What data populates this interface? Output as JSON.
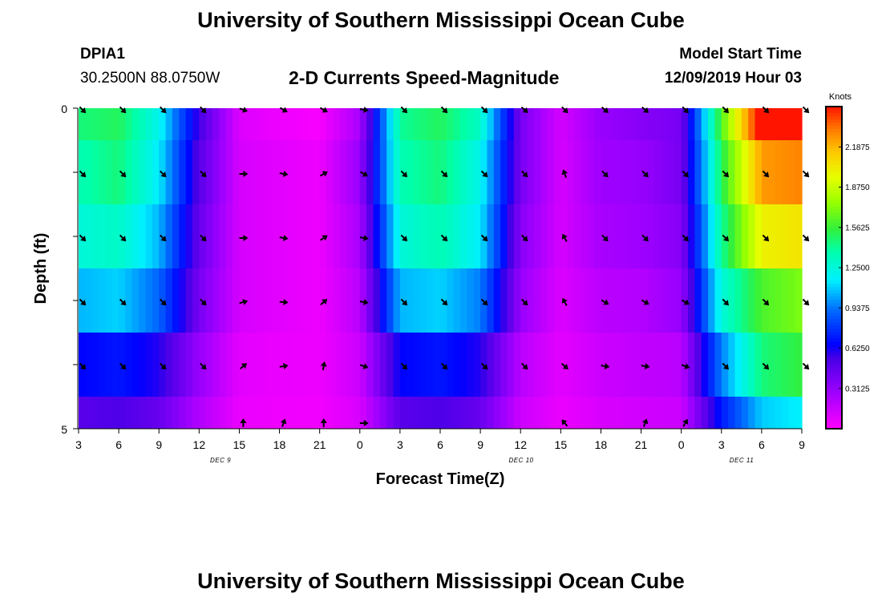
{
  "header": {
    "title": "University of Southern Mississippi Ocean Cube",
    "footer_title": "University of Southern Mississippi Ocean Cube",
    "station": "DPIA1",
    "location": "30.2500N 88.0750W",
    "chart_title": "2-D Currents Speed-Magnitude",
    "model_start_label": "Model Start Time",
    "model_start_value": "12/09/2019 Hour 03"
  },
  "chart_data": {
    "type": "heatmap",
    "title": "2-D Currents Speed-Magnitude",
    "xlabel": "Forecast Time(Z)",
    "ylabel": "Depth (ft)",
    "x_tick_labels": [
      "3",
      "6",
      "9",
      "12",
      "15",
      "18",
      "21",
      "0",
      "3",
      "6",
      "9",
      "12",
      "15",
      "18",
      "21",
      "0",
      "3",
      "6",
      "9"
    ],
    "y_tick_labels": [
      "0",
      "5"
    ],
    "ylim": [
      0,
      5
    ],
    "date_labels": [
      "DEC 9",
      "DEC 10",
      "DEC 11"
    ],
    "depths_ft": [
      0.5,
      1.5,
      2.5,
      3.5,
      4.5
    ],
    "hours": [
      3,
      6,
      9,
      12,
      15,
      18,
      21,
      0,
      3,
      6,
      9,
      12,
      15,
      18,
      21,
      0,
      3,
      6,
      9
    ],
    "speed_knots": [
      [
        1.45,
        1.5,
        1.2,
        0.55,
        0.1,
        0.05,
        0.02,
        0.25,
        1.4,
        1.5,
        1.3,
        0.4,
        0.12,
        0.3,
        0.35,
        0.4,
        1.6,
        2.6,
        2.8
      ],
      [
        1.35,
        1.45,
        1.15,
        0.5,
        0.12,
        0.08,
        0.05,
        0.3,
        1.35,
        1.45,
        1.2,
        0.4,
        0.12,
        0.28,
        0.3,
        0.4,
        1.5,
        2.25,
        2.3
      ],
      [
        1.25,
        1.3,
        1.05,
        0.45,
        0.12,
        0.08,
        0.05,
        0.25,
        1.25,
        1.35,
        1.15,
        0.35,
        0.12,
        0.25,
        0.28,
        0.35,
        1.4,
        2.0,
        2.05
      ],
      [
        1.05,
        1.1,
        0.9,
        0.4,
        0.12,
        0.08,
        0.05,
        0.2,
        1.05,
        1.1,
        0.95,
        0.3,
        0.1,
        0.2,
        0.22,
        0.3,
        1.25,
        1.6,
        1.7
      ],
      [
        0.65,
        0.7,
        0.6,
        0.3,
        0.08,
        0.06,
        0.05,
        0.15,
        0.65,
        0.7,
        0.6,
        0.2,
        0.08,
        0.15,
        0.18,
        0.2,
        0.95,
        1.45,
        1.55
      ]
    ],
    "arrow_direction_deg": [
      [
        135,
        135,
        135,
        135,
        110,
        120,
        120,
        100,
        135,
        135,
        135,
        130,
        135,
        130,
        130,
        135,
        135,
        135,
        135
      ],
      [
        135,
        135,
        135,
        135,
        90,
        100,
        60,
        120,
        135,
        135,
        135,
        135,
        340,
        135,
        135,
        135,
        135,
        135,
        135
      ],
      [
        135,
        135,
        135,
        135,
        90,
        100,
        55,
        100,
        135,
        135,
        135,
        135,
        330,
        135,
        135,
        135,
        135,
        135,
        135
      ],
      [
        135,
        135,
        135,
        135,
        75,
        95,
        50,
        100,
        135,
        135,
        135,
        135,
        330,
        120,
        120,
        120,
        135,
        135,
        135
      ],
      [
        135,
        135,
        135,
        135,
        50,
        80,
        10,
        110,
        135,
        135,
        135,
        135,
        130,
        100,
        100,
        110,
        135,
        135,
        135
      ],
      [
        null,
        null,
        null,
        null,
        0,
        20,
        0,
        90,
        null,
        null,
        null,
        null,
        320,
        null,
        20,
        30,
        null,
        null,
        null
      ]
    ],
    "colorbar": {
      "unit": "Knots",
      "range": [
        0,
        2.5
      ],
      "tick_labels": [
        "0.3125",
        "0.6250",
        "0.9375",
        "1.2500",
        "1.5625",
        "1.8750",
        "2.1875"
      ]
    },
    "grid": false
  }
}
